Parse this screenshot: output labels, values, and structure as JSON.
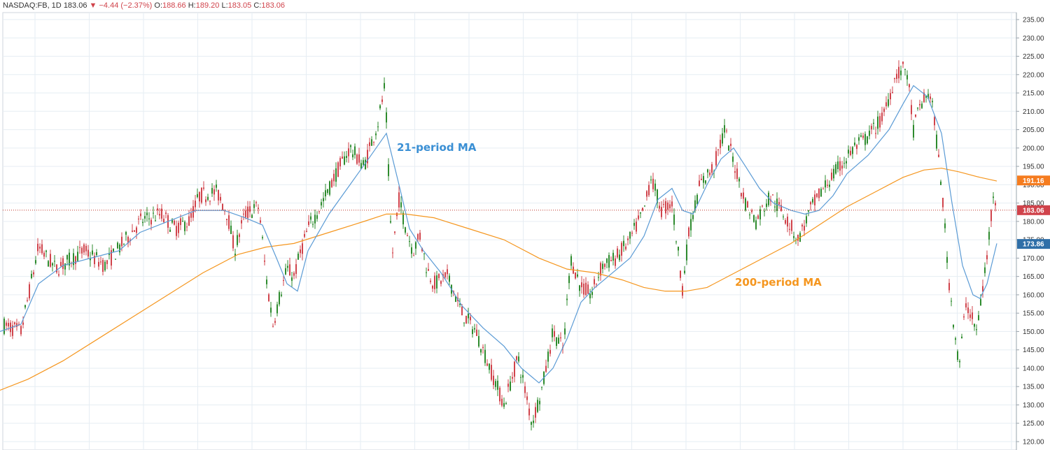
{
  "header": {
    "symbol": "NASDAQ:FB, 1D",
    "last": "183.06",
    "arrow": "▼",
    "change": "−4.44 (−2.37%)",
    "o_label": "O:",
    "o_value": "188.66",
    "h_label": "H:",
    "h_value": "189.20",
    "l_label": "L:",
    "l_value": "183.05",
    "c_label": "C:",
    "c_value": "183.06"
  },
  "colors": {
    "up": "#2e8b2e",
    "down": "#d0434b",
    "ma21": "#5b9bd5",
    "ma200": "#f5961e",
    "grid": "#e6edf3",
    "price_line": "#c0392b"
  },
  "chart_data": {
    "type": "line",
    "title": "",
    "xlabel": "",
    "ylabel": "",
    "ylim": [
      119,
      236
    ],
    "y_ticks": [
      "235.00",
      "230.00",
      "225.00",
      "220.00",
      "215.00",
      "210.00",
      "205.00",
      "200.00",
      "195.00",
      "190.00",
      "185.00",
      "180.00",
      "175.00",
      "170.00",
      "165.00",
      "160.00",
      "155.00",
      "150.00",
      "145.00",
      "140.00",
      "135.00",
      "130.00",
      "125.00",
      "120.00"
    ],
    "grid": true,
    "annotations": [
      {
        "text": "21-period MA",
        "color": "#3a8fd4"
      },
      {
        "text": "200-period MA",
        "color": "#f5961e"
      }
    ],
    "price_tags": [
      {
        "text": "191.16",
        "value": 191.16,
        "color": "#f57c1f"
      },
      {
        "text": "183.06",
        "value": 183.06,
        "color": "#d0434b"
      },
      {
        "text": "173.86",
        "value": 173.86,
        "color": "#2f6fa8"
      }
    ],
    "current_price": 183.06,
    "price_path": [
      [
        0,
        152
      ],
      [
        30,
        150
      ],
      [
        55,
        173
      ],
      [
        80,
        167
      ],
      [
        120,
        172
      ],
      [
        150,
        168
      ],
      [
        180,
        175
      ],
      [
        200,
        180
      ],
      [
        230,
        182
      ],
      [
        250,
        178
      ],
      [
        270,
        180
      ],
      [
        285,
        187
      ],
      [
        310,
        188
      ],
      [
        325,
        182
      ],
      [
        335,
        172
      ],
      [
        350,
        182
      ],
      [
        370,
        184
      ],
      [
        380,
        165
      ],
      [
        390,
        152
      ],
      [
        400,
        160
      ],
      [
        410,
        167
      ],
      [
        420,
        165
      ],
      [
        430,
        172
      ],
      [
        440,
        178
      ],
      [
        460,
        185
      ],
      [
        480,
        193
      ],
      [
        500,
        200
      ],
      [
        520,
        195
      ],
      [
        540,
        207
      ],
      [
        550,
        217
      ],
      [
        560,
        170
      ],
      [
        570,
        186
      ],
      [
        580,
        178
      ],
      [
        590,
        172
      ],
      [
        600,
        176
      ],
      [
        610,
        167
      ],
      [
        620,
        163
      ],
      [
        640,
        165
      ],
      [
        660,
        155
      ],
      [
        680,
        150
      ],
      [
        700,
        140
      ],
      [
        720,
        130
      ],
      [
        740,
        143
      ],
      [
        760,
        125
      ],
      [
        775,
        135
      ],
      [
        790,
        150
      ],
      [
        805,
        145
      ],
      [
        815,
        170
      ],
      [
        830,
        162
      ],
      [
        845,
        160
      ],
      [
        860,
        168
      ],
      [
        880,
        170
      ],
      [
        900,
        175
      ],
      [
        920,
        183
      ],
      [
        930,
        192
      ],
      [
        945,
        183
      ],
      [
        960,
        185
      ],
      [
        975,
        162
      ],
      [
        985,
        178
      ],
      [
        1000,
        190
      ],
      [
        1020,
        195
      ],
      [
        1035,
        205
      ],
      [
        1050,
        195
      ],
      [
        1065,
        185
      ],
      [
        1080,
        180
      ],
      [
        1100,
        187
      ],
      [
        1120,
        182
      ],
      [
        1140,
        175
      ],
      [
        1160,
        184
      ],
      [
        1180,
        190
      ],
      [
        1200,
        195
      ],
      [
        1220,
        200
      ],
      [
        1240,
        203
      ],
      [
        1260,
        208
      ],
      [
        1280,
        220
      ],
      [
        1295,
        222
      ],
      [
        1305,
        205
      ],
      [
        1315,
        212
      ],
      [
        1330,
        215
      ],
      [
        1345,
        190
      ],
      [
        1355,
        165
      ],
      [
        1370,
        140
      ],
      [
        1380,
        158
      ],
      [
        1395,
        150
      ],
      [
        1410,
        170
      ],
      [
        1420,
        190
      ],
      [
        1424,
        183
      ]
    ],
    "ma21": [
      [
        0,
        150
      ],
      [
        30,
        152
      ],
      [
        55,
        163
      ],
      [
        90,
        168
      ],
      [
        130,
        170
      ],
      [
        170,
        172
      ],
      [
        200,
        177
      ],
      [
        240,
        180
      ],
      [
        280,
        183
      ],
      [
        320,
        183
      ],
      [
        350,
        181
      ],
      [
        375,
        179
      ],
      [
        395,
        170
      ],
      [
        410,
        163
      ],
      [
        425,
        161
      ],
      [
        440,
        172
      ],
      [
        470,
        182
      ],
      [
        500,
        190
      ],
      [
        530,
        198
      ],
      [
        552,
        204
      ],
      [
        570,
        190
      ],
      [
        585,
        178
      ],
      [
        605,
        172
      ],
      [
        630,
        166
      ],
      [
        660,
        157
      ],
      [
        690,
        151
      ],
      [
        720,
        146
      ],
      [
        745,
        140
      ],
      [
        770,
        136
      ],
      [
        790,
        140
      ],
      [
        810,
        148
      ],
      [
        830,
        158
      ],
      [
        850,
        162
      ],
      [
        875,
        166
      ],
      [
        900,
        170
      ],
      [
        920,
        176
      ],
      [
        940,
        186
      ],
      [
        960,
        189
      ],
      [
        975,
        183
      ],
      [
        990,
        182
      ],
      [
        1010,
        190
      ],
      [
        1030,
        197
      ],
      [
        1048,
        200
      ],
      [
        1065,
        195
      ],
      [
        1085,
        189
      ],
      [
        1105,
        185
      ],
      [
        1130,
        183
      ],
      [
        1150,
        182
      ],
      [
        1170,
        183
      ],
      [
        1190,
        187
      ],
      [
        1210,
        193
      ],
      [
        1240,
        198
      ],
      [
        1270,
        205
      ],
      [
        1290,
        212
      ],
      [
        1305,
        217
      ],
      [
        1325,
        214
      ],
      [
        1345,
        204
      ],
      [
        1360,
        185
      ],
      [
        1375,
        168
      ],
      [
        1390,
        160
      ],
      [
        1400,
        159
      ],
      [
        1410,
        163
      ],
      [
        1424,
        174
      ]
    ],
    "ma200": [
      [
        0,
        134
      ],
      [
        40,
        137
      ],
      [
        90,
        142
      ],
      [
        140,
        148
      ],
      [
        190,
        154
      ],
      [
        240,
        160
      ],
      [
        290,
        166
      ],
      [
        340,
        171
      ],
      [
        380,
        173
      ],
      [
        420,
        174
      ],
      [
        470,
        177
      ],
      [
        520,
        180
      ],
      [
        552,
        182
      ],
      [
        580,
        182
      ],
      [
        620,
        181
      ],
      [
        670,
        178
      ],
      [
        720,
        175
      ],
      [
        770,
        170
      ],
      [
        810,
        167
      ],
      [
        850,
        166
      ],
      [
        890,
        164
      ],
      [
        920,
        162
      ],
      [
        950,
        161
      ],
      [
        980,
        161
      ],
      [
        1010,
        162
      ],
      [
        1050,
        166
      ],
      [
        1090,
        170
      ],
      [
        1130,
        174
      ],
      [
        1170,
        179
      ],
      [
        1210,
        184
      ],
      [
        1250,
        188
      ],
      [
        1290,
        192
      ],
      [
        1320,
        194
      ],
      [
        1345,
        194.5
      ],
      [
        1370,
        193.5
      ],
      [
        1400,
        192
      ],
      [
        1424,
        191
      ]
    ]
  }
}
